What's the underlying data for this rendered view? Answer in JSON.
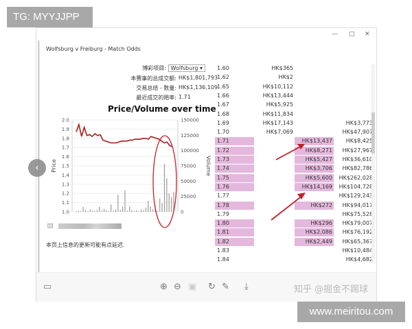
{
  "overlay_tag": "TG: MYYJJPP",
  "site_watermark": "www.meiritou.com",
  "viewer": {
    "controls": [
      "—",
      "□",
      "✕"
    ],
    "toolbar_watermark": "知乎 @掘金不踢球"
  },
  "market": {
    "title": "Wolfsburg v Freiburg - Match Odds",
    "selection_label": "博彩项目:",
    "selection_value": "Wolfsburg",
    "total_matched_label": "本赛事的总成交额:",
    "total_matched": "HK$1,801,793",
    "selection_matched_label": "交易总结 - 数量:",
    "selection_matched": "HK$1,136,109",
    "last_price_label": "最近成交的赔率:",
    "last_price": "1.71",
    "notice": "本页上信息的更新可能有点延迟."
  },
  "chart_data": {
    "type": "line",
    "title": "Price/Volume over time",
    "ylabel": "Price",
    "y2label": "Volume",
    "ylim": [
      1.0,
      2.0
    ],
    "y2lim": [
      0,
      150000
    ],
    "yticks": [
      "1.0",
      "1.1",
      "1.2",
      "1.3",
      "1.4",
      "1.5",
      "1.6",
      "1.7",
      "1.8",
      "1.9",
      "2.0"
    ],
    "y2ticks": [
      "0",
      "25000",
      "50000",
      "75000",
      "100000",
      "125000",
      "150000"
    ],
    "price": [
      1.87,
      1.95,
      1.82,
      1.92,
      1.83,
      1.84,
      1.82,
      1.85,
      1.83,
      1.84,
      1.78,
      1.77,
      1.76,
      1.75,
      1.75,
      1.75,
      1.76,
      1.77,
      1.77,
      1.77,
      1.78,
      1.78,
      1.79,
      1.79,
      1.79,
      1.8,
      1.8,
      1.79,
      1.82,
      1.81,
      1.8,
      1.79,
      1.77,
      1.75,
      1.76,
      1.72,
      1.71
    ],
    "volume": [
      1000,
      2000,
      1500,
      8000,
      3000,
      1000,
      4000,
      2000,
      1500,
      3000,
      8000,
      2000,
      5000,
      3000,
      1000,
      12000,
      2000,
      4000,
      28000,
      3000,
      8000,
      35000,
      2000,
      9000,
      3000,
      1500,
      2500,
      1000,
      4000,
      3000,
      7000,
      18000,
      9000,
      4000,
      11000,
      2000,
      22000,
      14000,
      78000,
      55000,
      30000,
      24000,
      32000
    ]
  },
  "order_book": [
    [
      "1.60",
      "HK$365",
      "",
      ""
    ],
    [
      "1.62",
      "HK$2",
      "",
      ""
    ],
    [
      "1.65",
      "HK$10,112",
      "",
      ""
    ],
    [
      "1.66",
      "HK$13,444",
      "",
      ""
    ],
    [
      "1.67",
      "HK$5,925",
      "",
      ""
    ],
    [
      "1.68",
      "HK$11,834",
      "",
      ""
    ],
    [
      "1.69",
      "HK$17,143",
      "",
      "HK$3,773"
    ],
    [
      "1.70",
      "HK$7,069",
      "",
      "HK$47,907"
    ],
    [
      "1.71",
      "",
      "HK$13,437",
      "HK$8,425"
    ],
    [
      "1.72",
      "",
      "HK$8,271",
      "HK$27,967"
    ],
    [
      "1.73",
      "",
      "HK$5,427",
      "HK$36,610"
    ],
    [
      "1.74",
      "",
      "HK$3,706",
      "HK$82,786"
    ],
    [
      "1.75",
      "",
      "HK$5,600",
      "HK$262,028"
    ],
    [
      "1.76",
      "",
      "HK$14,169",
      "HK$104,728"
    ],
    [
      "1.77",
      "",
      "",
      "HK$129,243"
    ],
    [
      "1.78",
      "",
      "HK$272",
      "HK$94,017"
    ],
    [
      "1.79",
      "",
      "",
      "HK$75,528"
    ],
    [
      "1.80",
      "",
      "HK$296",
      "HK$79,007"
    ],
    [
      "1.81",
      "",
      "HK$2,086",
      "HK$76,192"
    ],
    [
      "1.82",
      "",
      "HK$2,449",
      "HK$65,367"
    ],
    [
      "1.83",
      "",
      "",
      "HK$10,484"
    ],
    [
      "1.84",
      "",
      "",
      "HK$4,682"
    ]
  ],
  "colors": {
    "highlight": "#e4b8dc",
    "price_line": "#b01818",
    "annotation": "#c0202a"
  }
}
